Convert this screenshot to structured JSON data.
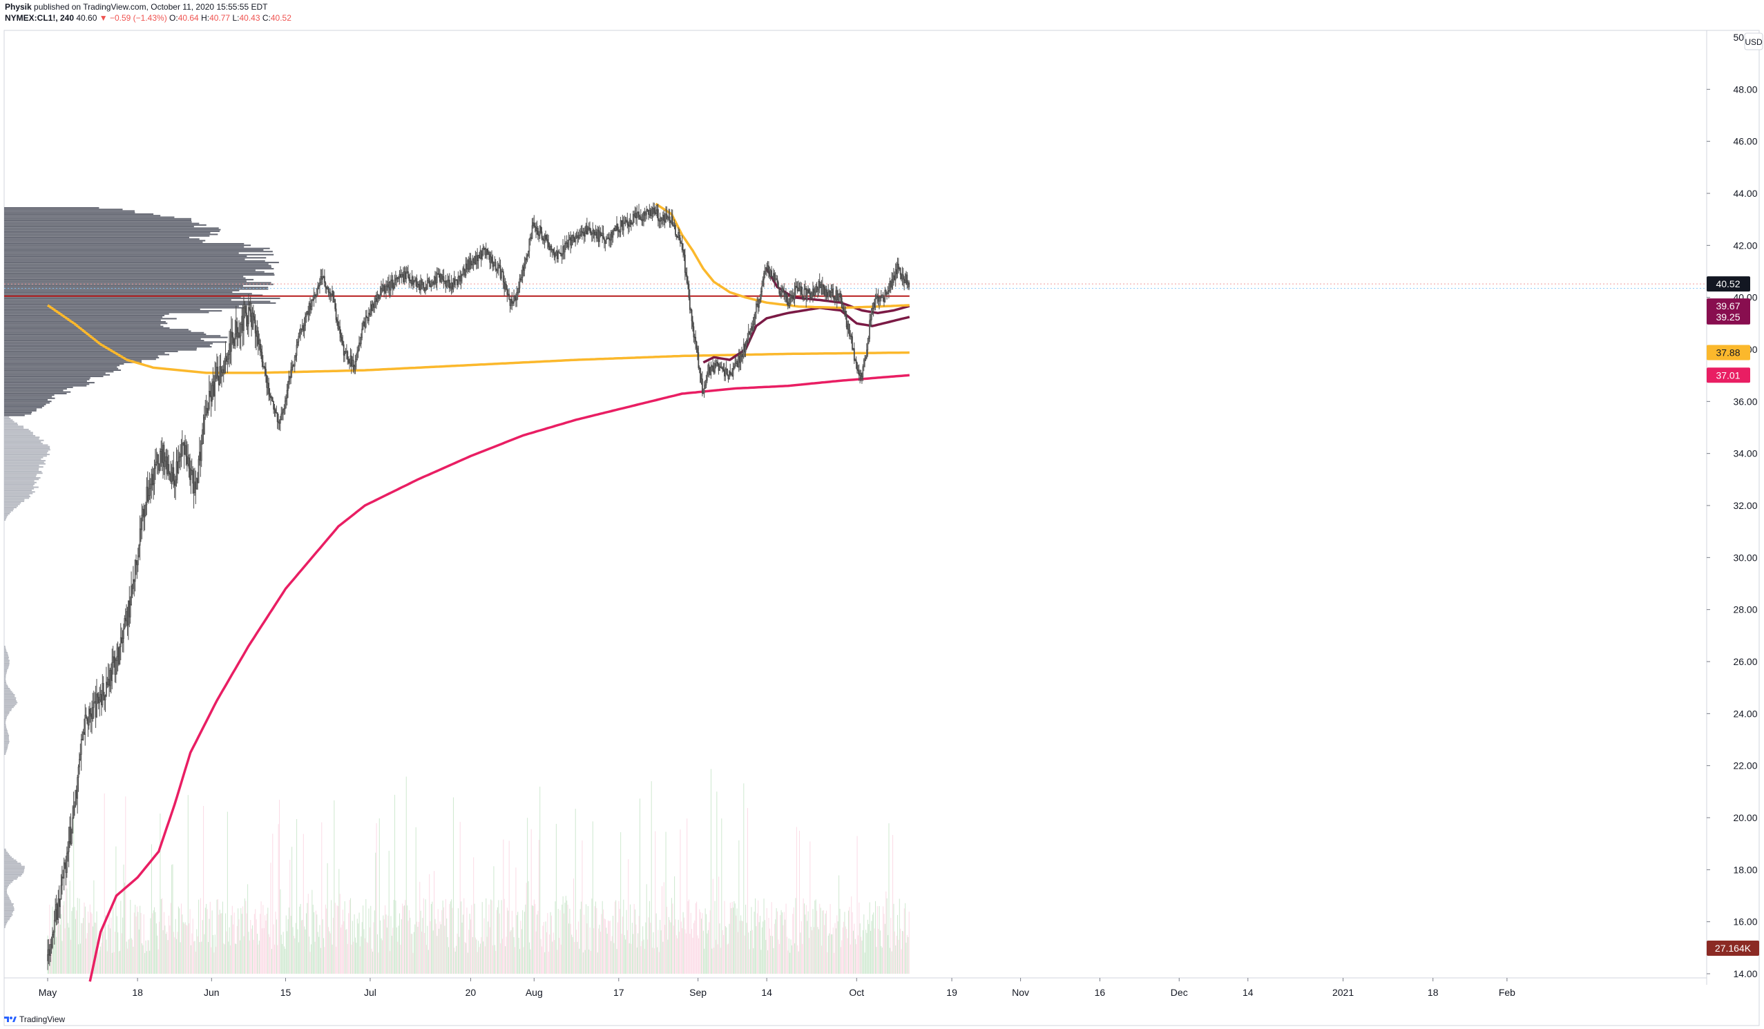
{
  "header": {
    "author": "Physik",
    "published": "published on TradingView.com, October 11, 2020 15:55:55 EDT",
    "symbol": "NYMEX:CL1!, 240",
    "last": "40.60",
    "change": "▼ −0.59 (−1.43%)",
    "o_label": "O:",
    "o_value": "40.64",
    "h_label": "H:",
    "h_value": "40.77",
    "l_label": "L:",
    "l_value": "40.43",
    "c_label": "C:",
    "c_value": "40.52"
  },
  "footer": {
    "brand": "TradingView"
  },
  "chart_data": {
    "type": "candlestick",
    "title": "NYMEX:CL1!, 240",
    "currency": "USD",
    "y_axis": {
      "min": 13.7,
      "max": 50.2,
      "ticks": [
        "48.00",
        "46.00",
        "44.00",
        "42.00",
        "40.00",
        "38.00",
        "36.00",
        "34.00",
        "32.00",
        "30.00",
        "28.00",
        "26.00",
        "24.00",
        "22.00",
        "20.00",
        "18.00",
        "16.00",
        "14.00"
      ],
      "top_tick_partial": "50.00"
    },
    "x_axis": {
      "labels": [
        {
          "text": "May",
          "day": 0
        },
        {
          "text": "18",
          "day": 17
        },
        {
          "text": "Jun",
          "day": 31
        },
        {
          "text": "15",
          "day": 45
        },
        {
          "text": "Jul",
          "day": 61
        },
        {
          "text": "20",
          "day": 80
        },
        {
          "text": "Aug",
          "day": 92
        },
        {
          "text": "17",
          "day": 108
        },
        {
          "text": "Sep",
          "day": 123
        },
        {
          "text": "14",
          "day": 136
        },
        {
          "text": "Oct",
          "day": 153
        },
        {
          "text": "19",
          "day": 171
        },
        {
          "text": "Nov",
          "day": 184
        },
        {
          "text": "16",
          "day": 199
        },
        {
          "text": "Dec",
          "day": 214
        },
        {
          "text": "14",
          "day": 227
        },
        {
          "text": "2021",
          "day": 245
        },
        {
          "text": "18",
          "day": 262
        },
        {
          "text": "Feb",
          "day": 276
        }
      ],
      "data_end_day": 163,
      "axis_end_day": 296
    },
    "price_path": [
      {
        "d": 0,
        "p": 14.5
      },
      {
        "d": 3,
        "p": 17.5
      },
      {
        "d": 5,
        "p": 20.0
      },
      {
        "d": 7,
        "p": 23.5
      },
      {
        "d": 9,
        "p": 24.2
      },
      {
        "d": 11,
        "p": 25.0
      },
      {
        "d": 14,
        "p": 26.5
      },
      {
        "d": 16,
        "p": 28.5
      },
      {
        "d": 18,
        "p": 31.5
      },
      {
        "d": 20,
        "p": 33.2
      },
      {
        "d": 22,
        "p": 34.0
      },
      {
        "d": 24,
        "p": 33.0
      },
      {
        "d": 26,
        "p": 34.4
      },
      {
        "d": 28,
        "p": 32.5
      },
      {
        "d": 30,
        "p": 35.5
      },
      {
        "d": 32,
        "p": 36.8
      },
      {
        "d": 34,
        "p": 37.8
      },
      {
        "d": 36,
        "p": 38.8
      },
      {
        "d": 38,
        "p": 39.4
      },
      {
        "d": 40,
        "p": 38.5
      },
      {
        "d": 42,
        "p": 36.3
      },
      {
        "d": 44,
        "p": 35.0
      },
      {
        "d": 46,
        "p": 37.0
      },
      {
        "d": 48,
        "p": 38.6
      },
      {
        "d": 50,
        "p": 39.8
      },
      {
        "d": 52,
        "p": 40.8
      },
      {
        "d": 54,
        "p": 40.1
      },
      {
        "d": 56,
        "p": 38.0
      },
      {
        "d": 58,
        "p": 37.4
      },
      {
        "d": 60,
        "p": 39.0
      },
      {
        "d": 63,
        "p": 40.2
      },
      {
        "d": 66,
        "p": 40.6
      },
      {
        "d": 68,
        "p": 40.9
      },
      {
        "d": 71,
        "p": 40.4
      },
      {
        "d": 74,
        "p": 40.8
      },
      {
        "d": 77,
        "p": 40.5
      },
      {
        "d": 80,
        "p": 41.3
      },
      {
        "d": 83,
        "p": 41.8
      },
      {
        "d": 86,
        "p": 40.9
      },
      {
        "d": 88,
        "p": 39.6
      },
      {
        "d": 90,
        "p": 41.0
      },
      {
        "d": 92,
        "p": 42.8
      },
      {
        "d": 94,
        "p": 42.4
      },
      {
        "d": 96,
        "p": 41.6
      },
      {
        "d": 99,
        "p": 42.1
      },
      {
        "d": 102,
        "p": 42.6
      },
      {
        "d": 106,
        "p": 42.2
      },
      {
        "d": 108,
        "p": 42.7
      },
      {
        "d": 111,
        "p": 43.0
      },
      {
        "d": 114,
        "p": 43.3
      },
      {
        "d": 116,
        "p": 43.1
      },
      {
        "d": 118,
        "p": 43.0
      },
      {
        "d": 120,
        "p": 42.2
      },
      {
        "d": 121,
        "p": 40.8
      },
      {
        "d": 122,
        "p": 39.0
      },
      {
        "d": 123,
        "p": 37.8
      },
      {
        "d": 124,
        "p": 36.4
      },
      {
        "d": 125,
        "p": 37.2
      },
      {
        "d": 127,
        "p": 37.4
      },
      {
        "d": 129,
        "p": 37.0
      },
      {
        "d": 131,
        "p": 37.6
      },
      {
        "d": 133,
        "p": 38.6
      },
      {
        "d": 135,
        "p": 40.2
      },
      {
        "d": 136,
        "p": 41.3
      },
      {
        "d": 138,
        "p": 40.5
      },
      {
        "d": 140,
        "p": 39.8
      },
      {
        "d": 142,
        "p": 40.3
      },
      {
        "d": 144,
        "p": 40.1
      },
      {
        "d": 146,
        "p": 40.4
      },
      {
        "d": 148,
        "p": 40.2
      },
      {
        "d": 150,
        "p": 40.0
      },
      {
        "d": 151,
        "p": 39.2
      },
      {
        "d": 152,
        "p": 38.6
      },
      {
        "d": 153,
        "p": 37.5
      },
      {
        "d": 154,
        "p": 37.0
      },
      {
        "d": 155,
        "p": 37.8
      },
      {
        "d": 156,
        "p": 39.5
      },
      {
        "d": 157,
        "p": 40.0
      },
      {
        "d": 158,
        "p": 39.9
      },
      {
        "d": 159,
        "p": 40.3
      },
      {
        "d": 161,
        "p": 41.1
      },
      {
        "d": 163,
        "p": 40.52
      }
    ],
    "series": [
      {
        "role": "ma-orange",
        "color": "#fbb82c",
        "last_value": "37.88",
        "points": [
          {
            "d": 0,
            "p": 39.7
          },
          {
            "d": 5,
            "p": 39.0
          },
          {
            "d": 10,
            "p": 38.2
          },
          {
            "d": 15,
            "p": 37.6
          },
          {
            "d": 20,
            "p": 37.3
          },
          {
            "d": 25,
            "p": 37.2
          },
          {
            "d": 30,
            "p": 37.1
          },
          {
            "d": 40,
            "p": 37.1
          },
          {
            "d": 60,
            "p": 37.2
          },
          {
            "d": 80,
            "p": 37.4
          },
          {
            "d": 100,
            "p": 37.6
          },
          {
            "d": 120,
            "p": 37.75
          },
          {
            "d": 140,
            "p": 37.83
          },
          {
            "d": 163,
            "p": 37.88
          }
        ]
      },
      {
        "role": "ma-pink",
        "color": "#e91e63",
        "last_value": "37.01",
        "points": [
          {
            "d": 8,
            "p": 13.7
          },
          {
            "d": 10,
            "p": 15.6
          },
          {
            "d": 13,
            "p": 17.0
          },
          {
            "d": 17,
            "p": 17.7
          },
          {
            "d": 21,
            "p": 18.7
          },
          {
            "d": 24,
            "p": 20.5
          },
          {
            "d": 27,
            "p": 22.5
          },
          {
            "d": 32,
            "p": 24.5
          },
          {
            "d": 38,
            "p": 26.6
          },
          {
            "d": 45,
            "p": 28.8
          },
          {
            "d": 50,
            "p": 30.0
          },
          {
            "d": 55,
            "p": 31.2
          },
          {
            "d": 60,
            "p": 32.0
          },
          {
            "d": 70,
            "p": 33.0
          },
          {
            "d": 80,
            "p": 33.9
          },
          {
            "d": 90,
            "p": 34.7
          },
          {
            "d": 100,
            "p": 35.3
          },
          {
            "d": 110,
            "p": 35.8
          },
          {
            "d": 120,
            "p": 36.3
          },
          {
            "d": 130,
            "p": 36.5
          },
          {
            "d": 140,
            "p": 36.6
          },
          {
            "d": 150,
            "p": 36.8
          },
          {
            "d": 163,
            "p": 37.01
          }
        ]
      },
      {
        "role": "anchored-vwap-upper",
        "color": "#7b1a45",
        "last_value": "39.67",
        "points": [
          {
            "d": 136,
            "p": 41.1
          },
          {
            "d": 138,
            "p": 40.4
          },
          {
            "d": 141,
            "p": 40.0
          },
          {
            "d": 146,
            "p": 39.9
          },
          {
            "d": 150,
            "p": 39.8
          },
          {
            "d": 154,
            "p": 39.5
          },
          {
            "d": 157,
            "p": 39.4
          },
          {
            "d": 160,
            "p": 39.5
          },
          {
            "d": 163,
            "p": 39.67
          }
        ]
      },
      {
        "role": "anchored-vwap-lower",
        "color": "#7b1a45",
        "last_value": "39.25",
        "points": [
          {
            "d": 124,
            "p": 37.5
          },
          {
            "d": 126,
            "p": 37.7
          },
          {
            "d": 129,
            "p": 37.6
          },
          {
            "d": 132,
            "p": 38.0
          },
          {
            "d": 134,
            "p": 38.9
          },
          {
            "d": 136,
            "p": 39.2
          },
          {
            "d": 140,
            "p": 39.4
          },
          {
            "d": 146,
            "p": 39.6
          },
          {
            "d": 150,
            "p": 39.5
          },
          {
            "d": 153,
            "p": 39.0
          },
          {
            "d": 156,
            "p": 38.9
          },
          {
            "d": 159,
            "p": 39.05
          },
          {
            "d": 163,
            "p": 39.25
          }
        ]
      },
      {
        "role": "orange-trail",
        "color": "#fbb82c",
        "points": [
          {
            "d": 115,
            "p": 43.6
          },
          {
            "d": 118,
            "p": 43.2
          },
          {
            "d": 120,
            "p": 42.4
          },
          {
            "d": 122,
            "p": 41.8
          },
          {
            "d": 124,
            "p": 41.1
          },
          {
            "d": 126,
            "p": 40.6
          },
          {
            "d": 129,
            "p": 40.2
          },
          {
            "d": 132,
            "p": 40.0
          },
          {
            "d": 136,
            "p": 39.8
          },
          {
            "d": 142,
            "p": 39.65
          },
          {
            "d": 150,
            "p": 39.6
          },
          {
            "d": 157,
            "p": 39.65
          },
          {
            "d": 163,
            "p": 39.7
          }
        ]
      }
    ],
    "horizontal_lines": [
      {
        "role": "poc",
        "value": 40.05,
        "color": "#b71c1c"
      }
    ],
    "price_labels": [
      {
        "value": 40.52,
        "text": "40.52",
        "bg": "#131722",
        "fg": "#ffffff"
      },
      {
        "value": 39.67,
        "text": "39.67",
        "bg": "#880e4f",
        "fg": "#ffffff"
      },
      {
        "value": 39.25,
        "text": "39.25",
        "bg": "#880e4f",
        "fg": "#ffffff"
      },
      {
        "value": 37.88,
        "text": "37.88",
        "bg": "#fbb82c",
        "fg": "#131722"
      },
      {
        "value": 37.01,
        "text": "37.01",
        "bg": "#e91e63",
        "fg": "#ffffff"
      }
    ],
    "volume_label": {
      "text": "27.164K",
      "bg": "#8b2a24",
      "fg": "#ffffff"
    },
    "volume_profile": {
      "color_in_range": "#5d606b",
      "color_out_range": "#b2b5be",
      "upper_band": {
        "from": 35.4,
        "to": 43.5
      },
      "nodes": [
        {
          "p": 43.3,
          "w": 0.35
        },
        {
          "p": 42.8,
          "w": 0.55
        },
        {
          "p": 42.3,
          "w": 0.45
        },
        {
          "p": 41.8,
          "w": 0.65
        },
        {
          "p": 41.3,
          "w": 0.85
        },
        {
          "p": 40.7,
          "w": 1.0
        },
        {
          "p": 40.1,
          "w": 0.95
        },
        {
          "p": 39.6,
          "w": 0.55
        },
        {
          "p": 39.0,
          "w": 0.45
        },
        {
          "p": 38.4,
          "w": 0.7
        },
        {
          "p": 37.8,
          "w": 0.45
        },
        {
          "p": 37.2,
          "w": 0.35
        },
        {
          "p": 36.6,
          "w": 0.22
        },
        {
          "p": 36.0,
          "w": 0.12
        },
        {
          "p": 35.5,
          "w": 0.06
        }
      ],
      "lower_nodes": [
        {
          "p": 34.8,
          "w": 0.08
        },
        {
          "p": 34.2,
          "w": 0.14
        },
        {
          "p": 33.5,
          "w": 0.12
        },
        {
          "p": 32.8,
          "w": 0.1
        },
        {
          "p": 32.2,
          "w": 0.06
        },
        {
          "p": 26.0,
          "w": 0.02
        },
        {
          "p": 24.5,
          "w": 0.05
        },
        {
          "p": 23.0,
          "w": 0.02
        },
        {
          "p": 18.0,
          "w": 0.08
        },
        {
          "p": 16.5,
          "w": 0.04
        }
      ]
    },
    "grid": false,
    "legend": "none"
  }
}
